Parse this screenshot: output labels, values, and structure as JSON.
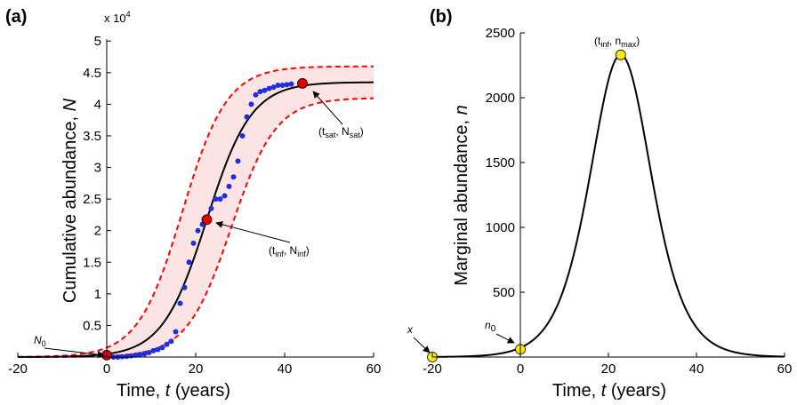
{
  "chart_data": [
    {
      "panel_label": "(a)",
      "type": "line",
      "xlabel": {
        "main": "Time, ",
        "var": "t",
        "unit": " (years)"
      },
      "ylabel": {
        "main": "Cumulative abundance, ",
        "var": "N"
      },
      "xlim": [
        -20,
        60
      ],
      "ylim": [
        0,
        52000
      ],
      "xticks": [
        -20,
        0,
        20,
        40,
        60
      ],
      "yticks": [
        0,
        5000,
        10000,
        15000,
        20000,
        25000,
        30000,
        35000,
        40000,
        45000,
        50000
      ],
      "ytick_labels": [
        "",
        "0.5",
        "1",
        "1.5",
        "2",
        "2.5",
        "3",
        "3.5",
        "4",
        "4.5",
        "5"
      ],
      "multiplier": {
        "base": "x 10",
        "exp": "4"
      },
      "logistic": {
        "K": 43500,
        "x_inf": 22.5,
        "scale": 5
      },
      "band": {
        "upper_K": 46000,
        "upper_x_inf": 17,
        "lower_K": 41000,
        "lower_x_inf": 28,
        "scale": 5,
        "color": "#ff0000",
        "fill": "#fde4e4"
      },
      "observed": {
        "color": "#1f2fe0",
        "x": [
          1.5,
          2.5,
          3.5,
          4.5,
          5.5,
          6.5,
          7.5,
          8.5,
          9.5,
          10.5,
          11.5,
          12.5,
          13.5,
          14.5,
          15.5,
          16.5,
          17.5,
          18.5,
          19.5,
          20.5,
          21.5,
          22.5,
          23.5,
          24.5,
          25.5,
          26.5,
          27.5,
          28.5,
          29.5,
          30.5,
          31.5,
          32.5,
          33.5,
          34.5,
          35.5,
          36.5,
          37.5,
          38.5,
          39.5,
          40.5,
          41.5
        ],
        "y": [
          0,
          0,
          50,
          100,
          200,
          300,
          400,
          500,
          700,
          1000,
          1200,
          1500,
          2000,
          2500,
          4000,
          8500,
          11000,
          15000,
          18000,
          20000,
          21000,
          21500,
          23500,
          25000,
          25000,
          25500,
          27000,
          28500,
          31000,
          35000,
          38000,
          40000,
          41500,
          42000,
          42200,
          42500,
          42700,
          43000,
          43000,
          43100,
          43200
        ]
      },
      "key_points": [
        {
          "name": "n0",
          "x": 0,
          "y": 300,
          "color": "#e00000",
          "label": "N",
          "sub": "0"
        },
        {
          "name": "inflection",
          "x": 22.5,
          "y": 21750,
          "color": "#e00000",
          "label": "(t",
          "sub1": "inf",
          "mid": ", N",
          "sub2": "inf",
          "end": ")"
        },
        {
          "name": "saturation",
          "x": 44,
          "y": 43300,
          "color": "#e00000",
          "label": "(t",
          "sub1": "sat",
          "mid": ", N",
          "sub2": "sat",
          "end": ")"
        }
      ]
    },
    {
      "panel_label": "(b)",
      "type": "line",
      "xlabel": {
        "main": "Time, ",
        "var": "t",
        "unit": " (years)"
      },
      "ylabel": {
        "main": "Marginal abundance, ",
        "var": "n"
      },
      "xlim": [
        -20,
        60
      ],
      "ylim": [
        0,
        2500
      ],
      "xticks": [
        -20,
        0,
        20,
        40,
        60
      ],
      "yticks": [
        0,
        500,
        1000,
        1500,
        2000,
        2500
      ],
      "ytick_labels": [
        "",
        "500",
        "1000",
        "1500",
        "2000",
        "2500"
      ],
      "curve": {
        "peak": 2330,
        "x_inf": 22.8,
        "scale": 4.7
      },
      "key_points": [
        {
          "name": "x-point",
          "x": -20,
          "y": 0,
          "color": "#ffee00",
          "label": "x"
        },
        {
          "name": "n0-point",
          "x": 0,
          "y": 60,
          "color": "#ffee00",
          "label": "n",
          "sub": "0"
        },
        {
          "name": "peak",
          "x": 22.8,
          "y": 2330,
          "color": "#ffee00",
          "label": "(t",
          "sub1": "inf",
          "mid": ", n",
          "sub2": "max",
          "end": ")"
        }
      ]
    }
  ]
}
